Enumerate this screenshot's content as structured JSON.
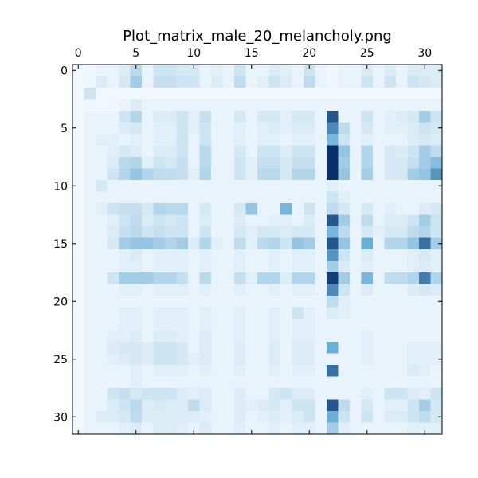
{
  "chart_data": {
    "type": "heatmap",
    "title": "Plot_matrix_male_20_melancholy.png",
    "xlabel": "",
    "ylabel": "",
    "x_ticks": [
      0,
      5,
      10,
      15,
      20,
      25,
      30
    ],
    "y_ticks": [
      0,
      5,
      10,
      15,
      20,
      25,
      30
    ],
    "x_axis_position": "top",
    "rows": 32,
    "cols": 32,
    "colormap": "Blues",
    "color_range": [
      0,
      1
    ],
    "grid": false,
    "legend": "none",
    "colors": {
      "low": "#f7fbff",
      "mid": "#6baed6",
      "high": "#08306b"
    },
    "values": [
      [
        0.02,
        0.03,
        0.05,
        0.05,
        0.1,
        0.22,
        0.05,
        0.15,
        0.15,
        0.12,
        0.12,
        0.05,
        0.08,
        0.05,
        0.15,
        0.05,
        0.05,
        0.1,
        0.08,
        0.05,
        0.15,
        0.05,
        0.03,
        0.05,
        0.05,
        0.1,
        0.05,
        0.1,
        0.05,
        0.1,
        0.1,
        0.1
      ],
      [
        0.02,
        0.03,
        0.1,
        0.05,
        0.12,
        0.3,
        0.05,
        0.18,
        0.18,
        0.15,
        0.15,
        0.05,
        0.1,
        0.05,
        0.2,
        0.05,
        0.08,
        0.15,
        0.1,
        0.05,
        0.2,
        0.05,
        0.03,
        0.05,
        0.05,
        0.15,
        0.05,
        0.15,
        0.05,
        0.15,
        0.12,
        0.1
      ],
      [
        0.02,
        0.15,
        0.02,
        0.02,
        0.02,
        0.02,
        0.02,
        0.02,
        0.02,
        0.02,
        0.02,
        0.02,
        0.02,
        0.02,
        0.02,
        0.02,
        0.02,
        0.02,
        0.02,
        0.02,
        0.02,
        0.02,
        0.02,
        0.02,
        0.02,
        0.02,
        0.02,
        0.02,
        0.02,
        0.02,
        0.02,
        0.02
      ],
      [
        0.02,
        0.03,
        0.02,
        0.03,
        0.05,
        0.1,
        0.05,
        0.05,
        0.05,
        0.05,
        0.05,
        0.05,
        0.05,
        0.05,
        0.05,
        0.05,
        0.05,
        0.05,
        0.05,
        0.05,
        0.05,
        0.05,
        0.05,
        0.05,
        0.05,
        0.05,
        0.05,
        0.05,
        0.05,
        0.05,
        0.05,
        0.05
      ],
      [
        0.02,
        0.05,
        0.05,
        0.05,
        0.15,
        0.25,
        0.05,
        0.1,
        0.1,
        0.15,
        0.08,
        0.18,
        0.05,
        0.05,
        0.12,
        0.05,
        0.12,
        0.12,
        0.08,
        0.12,
        0.12,
        0.05,
        0.85,
        0.05,
        0.05,
        0.15,
        0.05,
        0.08,
        0.1,
        0.12,
        0.3,
        0.15
      ],
      [
        0.02,
        0.05,
        0.05,
        0.05,
        0.1,
        0.12,
        0.05,
        0.08,
        0.08,
        0.15,
        0.08,
        0.15,
        0.05,
        0.05,
        0.08,
        0.05,
        0.08,
        0.1,
        0.08,
        0.1,
        0.1,
        0.05,
        0.65,
        0.2,
        0.05,
        0.12,
        0.05,
        0.08,
        0.08,
        0.1,
        0.15,
        0.12
      ],
      [
        0.02,
        0.05,
        0.08,
        0.08,
        0.05,
        0.08,
        0.05,
        0.08,
        0.08,
        0.15,
        0.05,
        0.15,
        0.05,
        0.05,
        0.08,
        0.05,
        0.08,
        0.08,
        0.05,
        0.08,
        0.08,
        0.05,
        0.45,
        0.15,
        0.05,
        0.08,
        0.05,
        0.05,
        0.05,
        0.1,
        0.12,
        0.1
      ],
      [
        0.02,
        0.05,
        0.05,
        0.08,
        0.12,
        0.1,
        0.05,
        0.1,
        0.1,
        0.15,
        0.05,
        0.22,
        0.05,
        0.05,
        0.12,
        0.05,
        0.15,
        0.15,
        0.1,
        0.15,
        0.15,
        0.05,
        1.0,
        0.35,
        0.05,
        0.25,
        0.05,
        0.12,
        0.1,
        0.15,
        0.3,
        0.2
      ],
      [
        0.02,
        0.05,
        0.05,
        0.1,
        0.22,
        0.25,
        0.08,
        0.15,
        0.12,
        0.18,
        0.05,
        0.22,
        0.05,
        0.05,
        0.15,
        0.08,
        0.18,
        0.18,
        0.12,
        0.18,
        0.18,
        0.05,
        1.0,
        0.3,
        0.05,
        0.25,
        0.05,
        0.12,
        0.12,
        0.18,
        0.3,
        0.4
      ],
      [
        0.02,
        0.05,
        0.05,
        0.15,
        0.25,
        0.35,
        0.25,
        0.2,
        0.2,
        0.18,
        0.08,
        0.25,
        0.05,
        0.05,
        0.15,
        0.08,
        0.22,
        0.22,
        0.12,
        0.25,
        0.25,
        0.05,
        1.0,
        0.35,
        0.05,
        0.3,
        0.05,
        0.12,
        0.12,
        0.3,
        0.35,
        0.6
      ],
      [
        0.02,
        0.05,
        0.12,
        0.05,
        0.05,
        0.05,
        0.05,
        0.05,
        0.05,
        0.05,
        0.05,
        0.05,
        0.05,
        0.05,
        0.05,
        0.05,
        0.05,
        0.05,
        0.05,
        0.05,
        0.05,
        0.05,
        0.08,
        0.05,
        0.05,
        0.05,
        0.05,
        0.05,
        0.05,
        0.05,
        0.05,
        0.05
      ],
      [
        0.02,
        0.05,
        0.05,
        0.05,
        0.05,
        0.05,
        0.05,
        0.05,
        0.05,
        0.05,
        0.05,
        0.05,
        0.05,
        0.05,
        0.05,
        0.05,
        0.05,
        0.05,
        0.05,
        0.05,
        0.05,
        0.05,
        0.15,
        0.08,
        0.05,
        0.05,
        0.05,
        0.05,
        0.05,
        0.05,
        0.05,
        0.05
      ],
      [
        0.02,
        0.05,
        0.08,
        0.15,
        0.18,
        0.18,
        0.12,
        0.25,
        0.22,
        0.22,
        0.05,
        0.12,
        0.05,
        0.05,
        0.12,
        0.35,
        0.05,
        0.05,
        0.45,
        0.05,
        0.15,
        0.05,
        0.2,
        0.12,
        0.05,
        0.12,
        0.05,
        0.08,
        0.05,
        0.05,
        0.1,
        0.12
      ],
      [
        0.02,
        0.05,
        0.05,
        0.08,
        0.15,
        0.2,
        0.1,
        0.15,
        0.12,
        0.15,
        0.05,
        0.1,
        0.05,
        0.05,
        0.1,
        0.05,
        0.05,
        0.08,
        0.08,
        0.05,
        0.1,
        0.05,
        0.85,
        0.3,
        0.05,
        0.2,
        0.05,
        0.1,
        0.1,
        0.15,
        0.3,
        0.15
      ],
      [
        0.02,
        0.05,
        0.05,
        0.1,
        0.18,
        0.22,
        0.15,
        0.18,
        0.15,
        0.15,
        0.05,
        0.15,
        0.05,
        0.05,
        0.12,
        0.08,
        0.12,
        0.12,
        0.1,
        0.12,
        0.12,
        0.05,
        0.45,
        0.2,
        0.05,
        0.12,
        0.08,
        0.12,
        0.12,
        0.2,
        0.25,
        0.15
      ],
      [
        0.02,
        0.05,
        0.05,
        0.12,
        0.3,
        0.35,
        0.35,
        0.3,
        0.25,
        0.3,
        0.1,
        0.25,
        0.08,
        0.05,
        0.2,
        0.08,
        0.22,
        0.25,
        0.15,
        0.35,
        0.3,
        0.05,
        0.85,
        0.35,
        0.05,
        0.5,
        0.05,
        0.25,
        0.25,
        0.35,
        0.75,
        0.3
      ],
      [
        0.02,
        0.05,
        0.05,
        0.05,
        0.08,
        0.1,
        0.05,
        0.08,
        0.08,
        0.08,
        0.05,
        0.08,
        0.05,
        0.05,
        0.08,
        0.05,
        0.05,
        0.08,
        0.05,
        0.08,
        0.08,
        0.05,
        0.6,
        0.15,
        0.05,
        0.1,
        0.05,
        0.05,
        0.05,
        0.08,
        0.12,
        0.08
      ],
      [
        0.02,
        0.05,
        0.05,
        0.05,
        0.08,
        0.08,
        0.05,
        0.08,
        0.08,
        0.08,
        0.05,
        0.08,
        0.05,
        0.05,
        0.08,
        0.05,
        0.05,
        0.08,
        0.05,
        0.08,
        0.08,
        0.05,
        0.3,
        0.1,
        0.05,
        0.08,
        0.05,
        0.05,
        0.05,
        0.08,
        0.1,
        0.08
      ],
      [
        0.02,
        0.05,
        0.05,
        0.15,
        0.3,
        0.3,
        0.3,
        0.25,
        0.25,
        0.18,
        0.05,
        0.22,
        0.05,
        0.05,
        0.18,
        0.08,
        0.25,
        0.25,
        0.1,
        0.25,
        0.25,
        0.05,
        0.95,
        0.3,
        0.05,
        0.45,
        0.05,
        0.2,
        0.2,
        0.25,
        0.7,
        0.25
      ],
      [
        0.02,
        0.05,
        0.05,
        0.05,
        0.08,
        0.08,
        0.05,
        0.08,
        0.08,
        0.08,
        0.05,
        0.08,
        0.05,
        0.05,
        0.08,
        0.05,
        0.05,
        0.08,
        0.05,
        0.08,
        0.08,
        0.05,
        0.65,
        0.15,
        0.05,
        0.1,
        0.05,
        0.05,
        0.05,
        0.1,
        0.12,
        0.1
      ],
      [
        0.02,
        0.05,
        0.05,
        0.05,
        0.05,
        0.05,
        0.05,
        0.05,
        0.05,
        0.05,
        0.05,
        0.05,
        0.05,
        0.05,
        0.05,
        0.05,
        0.05,
        0.05,
        0.05,
        0.05,
        0.05,
        0.05,
        0.2,
        0.08,
        0.05,
        0.05,
        0.05,
        0.05,
        0.05,
        0.05,
        0.05,
        0.05
      ],
      [
        0.02,
        0.05,
        0.05,
        0.05,
        0.08,
        0.08,
        0.05,
        0.08,
        0.08,
        0.08,
        0.05,
        0.08,
        0.05,
        0.05,
        0.08,
        0.05,
        0.05,
        0.08,
        0.05,
        0.15,
        0.08,
        0.05,
        0.1,
        0.08,
        0.05,
        0.05,
        0.05,
        0.05,
        0.05,
        0.05,
        0.05,
        0.05
      ],
      [
        0.02,
        0.05,
        0.05,
        0.05,
        0.08,
        0.08,
        0.05,
        0.08,
        0.08,
        0.08,
        0.05,
        0.08,
        0.05,
        0.05,
        0.08,
        0.05,
        0.05,
        0.08,
        0.05,
        0.08,
        0.08,
        0.05,
        0.05,
        0.05,
        0.05,
        0.05,
        0.05,
        0.05,
        0.05,
        0.05,
        0.05,
        0.05
      ],
      [
        0.02,
        0.05,
        0.05,
        0.08,
        0.08,
        0.1,
        0.05,
        0.1,
        0.1,
        0.08,
        0.05,
        0.1,
        0.05,
        0.05,
        0.08,
        0.05,
        0.05,
        0.08,
        0.05,
        0.08,
        0.08,
        0.05,
        0.05,
        0.05,
        0.05,
        0.08,
        0.05,
        0.05,
        0.05,
        0.05,
        0.05,
        0.05
      ],
      [
        0.02,
        0.05,
        0.05,
        0.1,
        0.12,
        0.12,
        0.1,
        0.15,
        0.15,
        0.12,
        0.05,
        0.1,
        0.05,
        0.05,
        0.1,
        0.05,
        0.05,
        0.1,
        0.05,
        0.1,
        0.1,
        0.05,
        0.5,
        0.05,
        0.05,
        0.08,
        0.05,
        0.05,
        0.05,
        0.08,
        0.08,
        0.08
      ],
      [
        0.02,
        0.05,
        0.05,
        0.08,
        0.1,
        0.12,
        0.1,
        0.15,
        0.15,
        0.12,
        0.08,
        0.1,
        0.05,
        0.05,
        0.1,
        0.05,
        0.05,
        0.1,
        0.05,
        0.1,
        0.1,
        0.05,
        0.05,
        0.05,
        0.05,
        0.08,
        0.05,
        0.05,
        0.05,
        0.08,
        0.08,
        0.08
      ],
      [
        0.02,
        0.05,
        0.05,
        0.05,
        0.05,
        0.08,
        0.05,
        0.08,
        0.08,
        0.08,
        0.05,
        0.08,
        0.05,
        0.05,
        0.08,
        0.05,
        0.05,
        0.08,
        0.05,
        0.08,
        0.08,
        0.05,
        0.75,
        0.05,
        0.05,
        0.05,
        0.05,
        0.05,
        0.05,
        0.1,
        0.08,
        0.05
      ],
      [
        0.02,
        0.05,
        0.05,
        0.05,
        0.05,
        0.08,
        0.05,
        0.05,
        0.05,
        0.05,
        0.05,
        0.05,
        0.05,
        0.05,
        0.05,
        0.05,
        0.05,
        0.05,
        0.05,
        0.05,
        0.05,
        0.05,
        0.05,
        0.05,
        0.05,
        0.05,
        0.05,
        0.05,
        0.05,
        0.05,
        0.05,
        0.05
      ],
      [
        0.02,
        0.05,
        0.05,
        0.15,
        0.18,
        0.12,
        0.15,
        0.15,
        0.15,
        0.1,
        0.08,
        0.1,
        0.05,
        0.05,
        0.1,
        0.05,
        0.05,
        0.12,
        0.15,
        0.1,
        0.1,
        0.05,
        0.05,
        0.05,
        0.05,
        0.08,
        0.05,
        0.15,
        0.15,
        0.1,
        0.08,
        0.15
      ],
      [
        0.02,
        0.05,
        0.05,
        0.1,
        0.15,
        0.22,
        0.1,
        0.12,
        0.1,
        0.1,
        0.2,
        0.1,
        0.05,
        0.05,
        0.1,
        0.08,
        0.1,
        0.12,
        0.08,
        0.15,
        0.15,
        0.05,
        0.85,
        0.2,
        0.05,
        0.12,
        0.05,
        0.08,
        0.08,
        0.15,
        0.3,
        0.12
      ],
      [
        0.02,
        0.05,
        0.1,
        0.1,
        0.12,
        0.2,
        0.1,
        0.1,
        0.1,
        0.1,
        0.1,
        0.08,
        0.05,
        0.05,
        0.1,
        0.05,
        0.08,
        0.1,
        0.08,
        0.1,
        0.15,
        0.05,
        0.5,
        0.15,
        0.05,
        0.15,
        0.05,
        0.1,
        0.1,
        0.15,
        0.2,
        0.12
      ],
      [
        0.02,
        0.05,
        0.05,
        0.05,
        0.08,
        0.1,
        0.05,
        0.1,
        0.1,
        0.08,
        0.05,
        0.1,
        0.05,
        0.05,
        0.08,
        0.05,
        0.05,
        0.08,
        0.05,
        0.08,
        0.08,
        0.05,
        0.3,
        0.08,
        0.05,
        0.05,
        0.05,
        0.05,
        0.05,
        0.08,
        0.08,
        0.08
      ]
    ]
  }
}
